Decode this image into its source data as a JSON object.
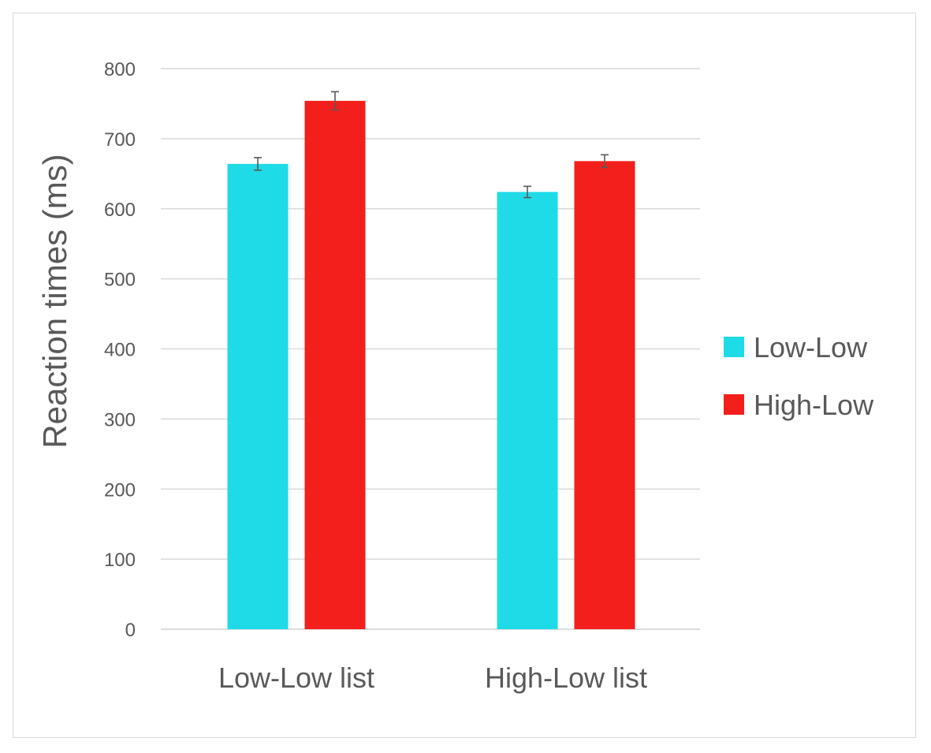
{
  "chart_data": {
    "type": "bar",
    "title": "",
    "xlabel": "",
    "ylabel": "Reaction times (ms)",
    "ylim": [
      0,
      800
    ],
    "yticks": [
      0,
      100,
      200,
      300,
      400,
      500,
      600,
      700,
      800
    ],
    "grid": true,
    "legend_position": "right",
    "categories": [
      "Low-Low list",
      "High-Low list"
    ],
    "series": [
      {
        "name": "Low-Low",
        "color": "#1fdbe8",
        "values": [
          664,
          624
        ],
        "errors": [
          9,
          8
        ]
      },
      {
        "name": "High-Low",
        "color": "#f21f1c",
        "values": [
          754,
          668
        ],
        "errors": [
          13,
          9
        ]
      }
    ]
  }
}
